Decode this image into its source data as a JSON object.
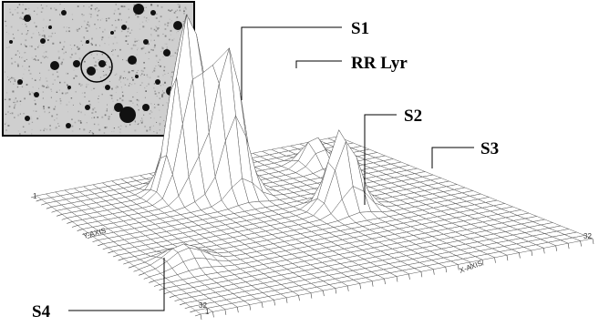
{
  "labels": {
    "s1": "S1",
    "rr_lyr": "RR Lyr",
    "s2": "S2",
    "s3": "S3",
    "s4": "S4"
  },
  "axes": {
    "x_axis_label": "X-AXIS",
    "y_axis_label": "Y-AXIS",
    "corner_ticks": [
      "1",
      "1",
      "32",
      "32"
    ]
  },
  "colors": {
    "mesh": "#5a5a5a",
    "inset_bg": "#c8c8c8",
    "inset_border": "#000000"
  },
  "peaks": [
    {
      "name": "S1",
      "u": 0.38,
      "v": 0.18,
      "height": 1.0,
      "width": 0.04
    },
    {
      "name": "RR Lyr",
      "u": 0.47,
      "v": 0.24,
      "height": 0.82,
      "width": 0.038
    },
    {
      "name": "S2",
      "u": 0.66,
      "v": 0.48,
      "height": 0.45,
      "width": 0.035
    },
    {
      "name": "S3",
      "u": 0.8,
      "v": 0.16,
      "height": 0.16,
      "width": 0.03
    },
    {
      "name": "S4",
      "u": 0.12,
      "v": 0.64,
      "height": 0.1,
      "width": 0.045
    }
  ]
}
